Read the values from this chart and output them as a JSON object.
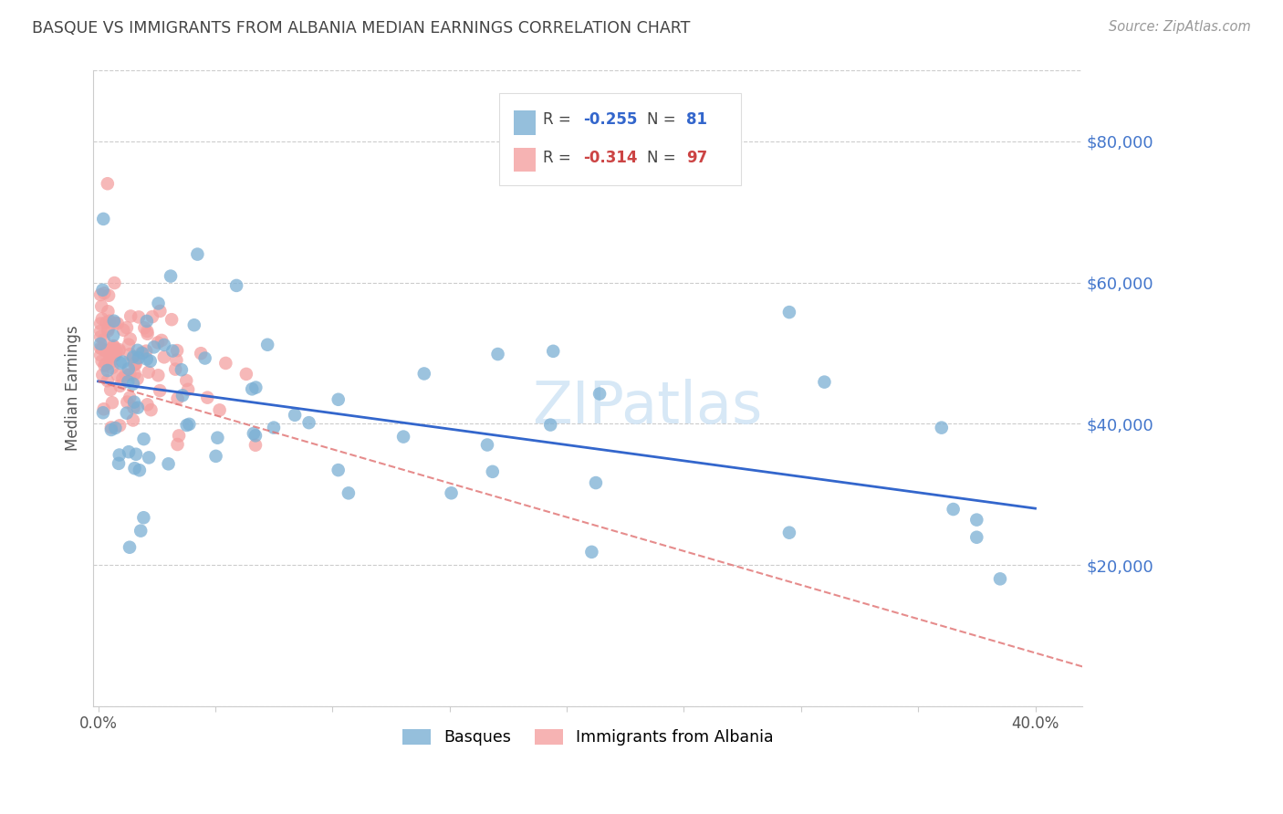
{
  "title": "BASQUE VS IMMIGRANTS FROM ALBANIA MEDIAN EARNINGS CORRELATION CHART",
  "source": "Source: ZipAtlas.com",
  "ylabel": "Median Earnings",
  "watermark": "ZIPatlas",
  "y_tick_labels": [
    "$20,000",
    "$40,000",
    "$60,000",
    "$80,000"
  ],
  "y_tick_values": [
    20000,
    40000,
    60000,
    80000
  ],
  "ylim": [
    0,
    90000
  ],
  "xlim": [
    -0.002,
    0.42
  ],
  "legend_blue_r": "-0.255",
  "legend_blue_n": "81",
  "legend_pink_r": "-0.314",
  "legend_pink_n": "97",
  "blue_color": "#7BAFD4",
  "pink_color": "#F4A0A0",
  "trendline_blue_color": "#3366CC",
  "trendline_pink_color": "#E07070",
  "title_color": "#444444",
  "source_color": "#999999",
  "ytick_color": "#4477CC",
  "xtick_color": "#555555",
  "background_color": "#FFFFFF",
  "grid_color": "#CCCCCC"
}
